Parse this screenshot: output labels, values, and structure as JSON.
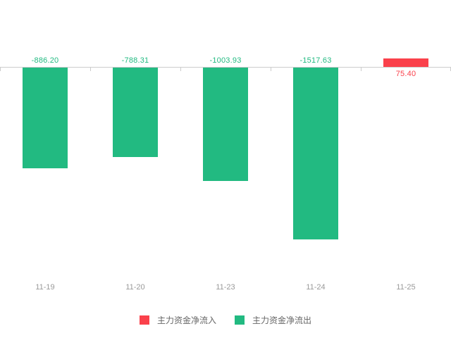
{
  "chart_data": {
    "type": "bar",
    "categories": [
      "11-19",
      "11-20",
      "11-23",
      "11-24",
      "11-25"
    ],
    "values": [
      -886.2,
      -788.31,
      -1003.93,
      -1517.63,
      75.4
    ],
    "value_labels": [
      "-886.20",
      "-788.31",
      "-1003.93",
      "-1517.63",
      "75.40"
    ],
    "title": "",
    "xlabel": "",
    "ylabel": "",
    "baseline": 0,
    "ylim": [
      -1520,
      80
    ],
    "grid": false,
    "legend_position": "bottom-center",
    "colors": {
      "positive": "#fa414b",
      "negative": "#22ba81",
      "axis": "#cccccc",
      "x_label": "#999999",
      "legend_text": "#666666"
    },
    "legend": [
      {
        "label": "主力资金净流入",
        "color": "#fa414b"
      },
      {
        "label": "主力资金净流出",
        "color": "#22ba81"
      }
    ]
  }
}
